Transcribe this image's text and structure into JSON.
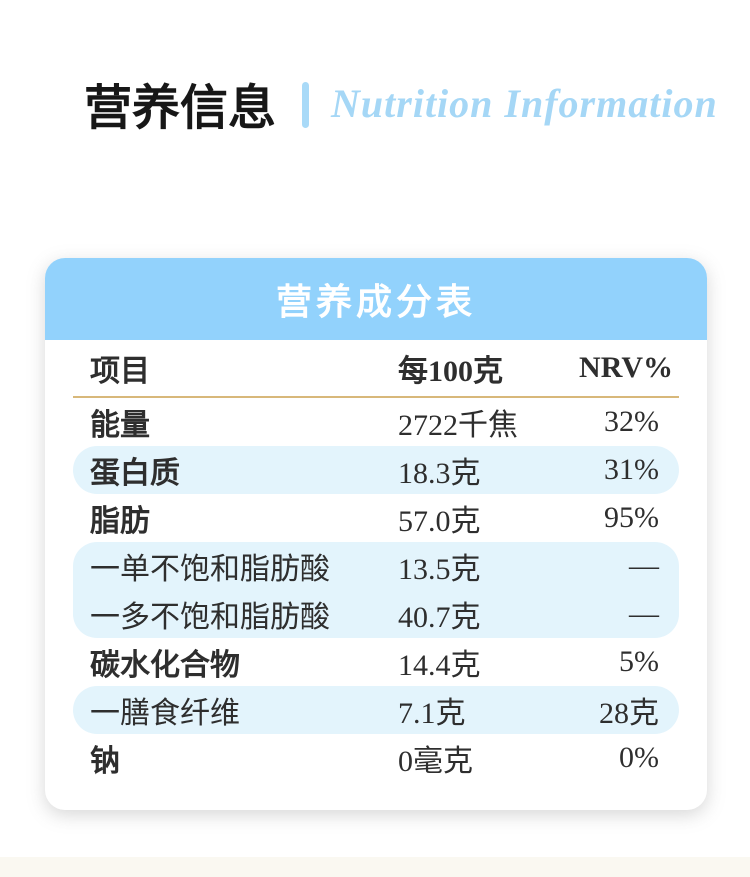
{
  "header": {
    "title_cn": "营养信息",
    "title_en": "Nutrition Information"
  },
  "card": {
    "banner_title": "营养成分表"
  },
  "table": {
    "headers": {
      "item": "项目",
      "per100g": "每100克",
      "nrv": "NRV%"
    },
    "rows": [
      {
        "item": "能量",
        "value": "2722千焦",
        "nrv": "32%",
        "highlight": false,
        "sub": false
      },
      {
        "item": "蛋白质",
        "value": "18.3克",
        "nrv": "31%",
        "highlight": true,
        "sub": false
      },
      {
        "item": "脂肪",
        "value": "57.0克",
        "nrv": "95%",
        "highlight": false,
        "sub": false
      },
      {
        "item": "一单不饱和脂肪酸",
        "value": "13.5克",
        "nrv": "—",
        "highlight": true,
        "sub": true,
        "group": "start"
      },
      {
        "item": "一多不饱和脂肪酸",
        "value": "40.7克",
        "nrv": "—",
        "highlight": true,
        "sub": true,
        "group": "end"
      },
      {
        "item": "碳水化合物",
        "value": "14.4克",
        "nrv": "5%",
        "highlight": false,
        "sub": false
      },
      {
        "item": "一膳食纤维",
        "value": "7.1克",
        "nrv": "28克",
        "highlight": true,
        "sub": true
      },
      {
        "item": "钠",
        "value": "0毫克",
        "nrv": "0%",
        "highlight": false,
        "sub": false
      }
    ]
  },
  "colors": {
    "banner_blue": "#92d2fc",
    "row_highlight_blue": "#e3f4fc",
    "accent_gold_line": "#d8b87a",
    "title_en_blue": "#a5d7f6",
    "divider_blue": "#a9daf8",
    "text_dark": "#2e2e2e",
    "footer_cream": "#faf8f1"
  }
}
